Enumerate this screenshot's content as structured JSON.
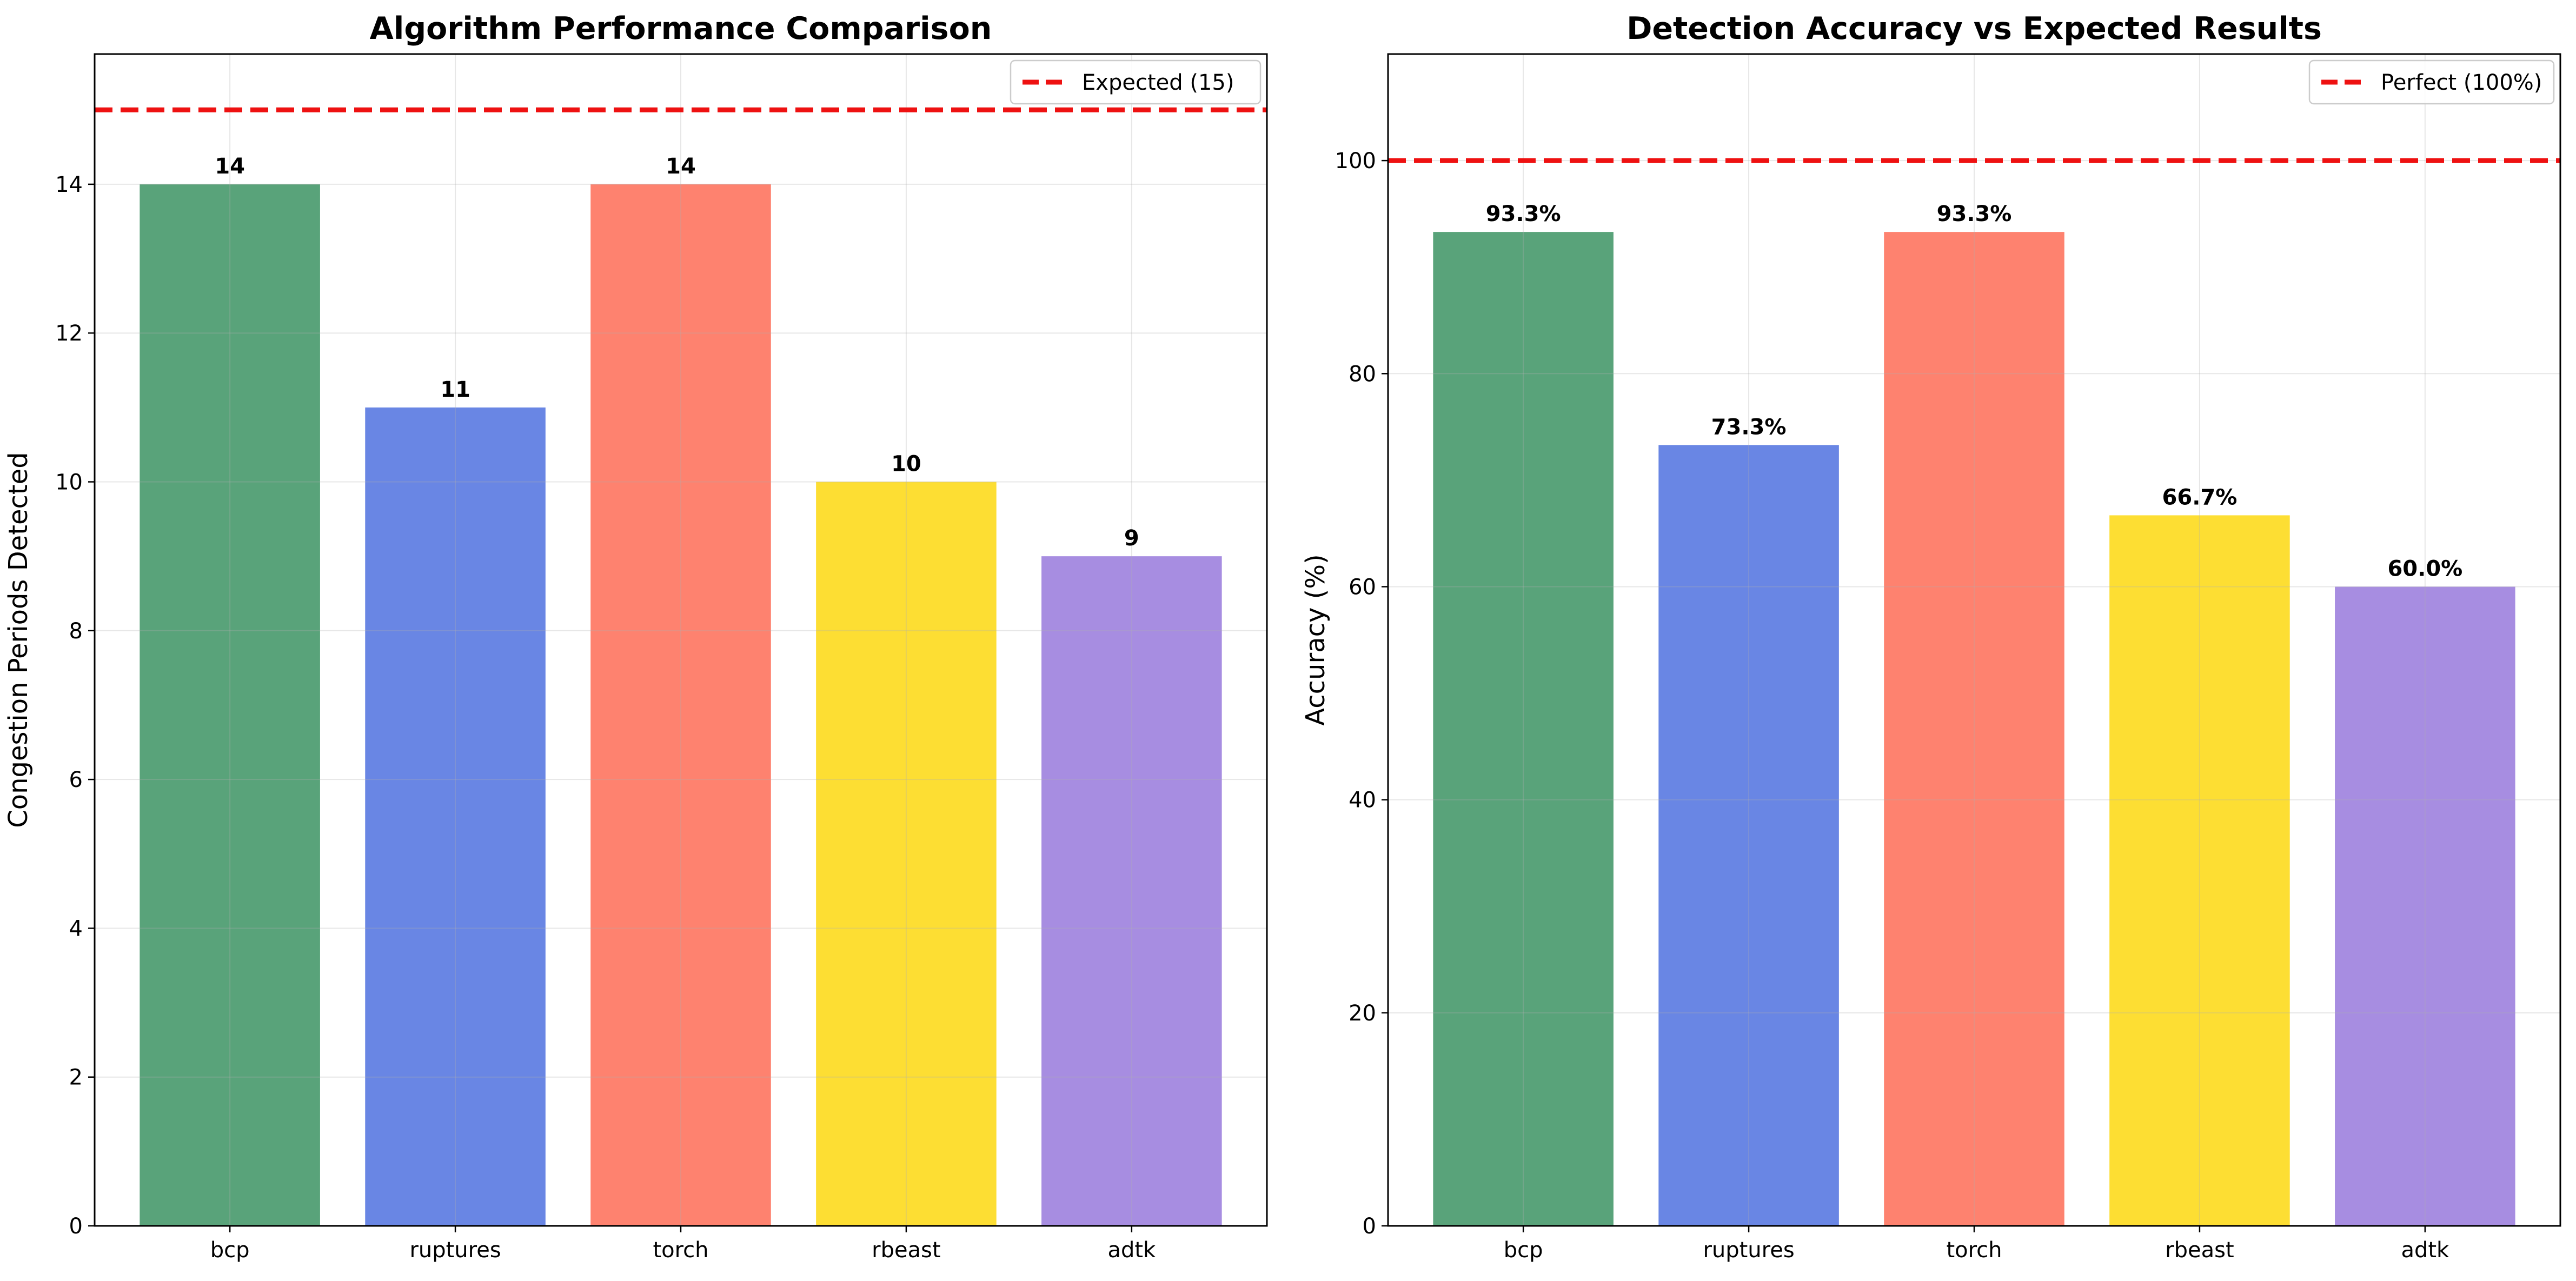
{
  "chart_data": [
    {
      "type": "bar",
      "title": "Algorithm Performance Comparison",
      "xlabel": "",
      "ylabel": "Congestion Periods Detected",
      "categories": [
        "bcp",
        "ruptures",
        "torch",
        "rbeast",
        "adtk"
      ],
      "values": [
        14,
        11,
        14,
        10,
        9
      ],
      "value_labels": [
        "14",
        "11",
        "14",
        "10",
        "9"
      ],
      "colors": [
        "#59a37a",
        "#6986e4",
        "#fe826f",
        "#fdde33",
        "#a78de1"
      ],
      "ylim": [
        0,
        15.75
      ],
      "yticks": [
        0,
        2,
        4,
        6,
        8,
        10,
        12,
        14
      ],
      "ytick_labels": [
        "0",
        "2",
        "4",
        "6",
        "8",
        "10",
        "12",
        "14"
      ],
      "reference_line": {
        "value": 15,
        "label": "Expected (15)",
        "color": "#ee1111",
        "style": "dashed"
      },
      "legend_position": "top-right",
      "grid": true
    },
    {
      "type": "bar",
      "title": "Detection Accuracy vs Expected Results",
      "xlabel": "",
      "ylabel": "Accuracy (%)",
      "categories": [
        "bcp",
        "ruptures",
        "torch",
        "rbeast",
        "adtk"
      ],
      "values": [
        93.3,
        73.3,
        93.3,
        66.7,
        60.0
      ],
      "value_labels": [
        "93.3%",
        "73.3%",
        "93.3%",
        "66.7%",
        "60.0%"
      ],
      "colors": [
        "#59a37a",
        "#6986e4",
        "#fe826f",
        "#fdde33",
        "#a78de1"
      ],
      "ylim": [
        0,
        110
      ],
      "yticks": [
        0,
        20,
        40,
        60,
        80,
        100
      ],
      "ytick_labels": [
        "0",
        "20",
        "40",
        "60",
        "80",
        "100"
      ],
      "reference_line": {
        "value": 100,
        "label": "Perfect (100%)",
        "color": "#ee1111",
        "style": "dashed"
      },
      "legend_position": "top-right",
      "grid": true
    }
  ]
}
